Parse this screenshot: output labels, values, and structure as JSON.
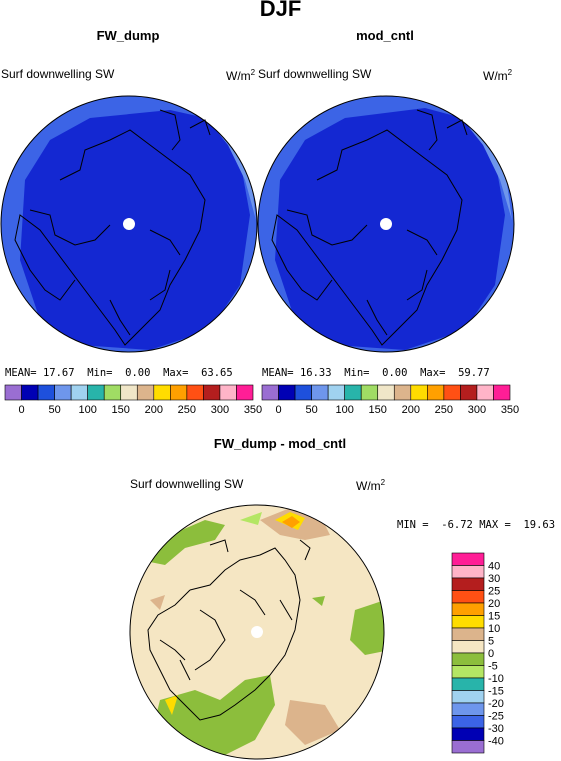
{
  "title": "DJF",
  "top_left": {
    "title": "FW_dump",
    "label_left": "Surf downwelling SW",
    "units": "W/m",
    "units_sup": "2",
    "stats": {
      "mean_label": "MEAN=",
      "mean": "17.67",
      "min_label": "Min=",
      "min": "0.00",
      "max_label": "Max=",
      "max": "63.65"
    }
  },
  "top_right": {
    "title": "mod_cntl",
    "label_left": "Surf downwelling SW",
    "units": "W/m",
    "units_sup": "2",
    "stats": {
      "mean_label": "MEAN=",
      "mean": "16.33",
      "min_label": "Min=",
      "min": "0.00",
      "max_label": "Max=",
      "max": "59.77"
    }
  },
  "bottom": {
    "title": "FW_dump - mod_cntl",
    "label_left": "Surf downwelling SW",
    "units": "W/m",
    "units_sup": "2",
    "stats": {
      "min_label": "MIN =",
      "min": "-6.72",
      "max_label": "MAX =",
      "max": "19.63"
    }
  },
  "colors": {
    "land_line": "#000000",
    "sw_deep_blue": "#1428d2",
    "sw_mid_blue": "#3c64e6",
    "sw_light_blue": "#6e96ec",
    "diff_tan": "#f5e6c3",
    "diff_brown": "#dcb48c",
    "diff_green": "#8cbe3c",
    "diff_light_green": "#b4e664",
    "diff_orange": "#ffa000",
    "diff_yellow": "#ffdc00"
  },
  "chart_data": [
    {
      "type": "heatmap",
      "projection": "polar stereographic (north pole)",
      "panel": "FW_dump",
      "variable": "Surf downwelling SW",
      "units": "W/m2",
      "colorbar": {
        "orientation": "horizontal",
        "ticks": [
          "0",
          "50",
          "100",
          "150",
          "200",
          "250",
          "300",
          "350"
        ],
        "colors": [
          "#9a6ed2",
          "#0000b4",
          "#1e50dc",
          "#6e96ec",
          "#a0d2f0",
          "#28b4aa",
          "#a0dc64",
          "#f0e6c8",
          "#dcb48c",
          "#ffdc00",
          "#ffa000",
          "#ff5014",
          "#b41e1e",
          "#ffb4c8",
          "#ff1e96"
        ]
      },
      "mean": 17.67,
      "min": 0.0,
      "max": 63.65
    },
    {
      "type": "heatmap",
      "projection": "polar stereographic (north pole)",
      "panel": "mod_cntl",
      "variable": "Surf downwelling SW",
      "units": "W/m2",
      "colorbar": {
        "orientation": "horizontal",
        "ticks": [
          "0",
          "50",
          "100",
          "150",
          "200",
          "250",
          "300",
          "350"
        ],
        "colors": [
          "#9a6ed2",
          "#0000b4",
          "#1e50dc",
          "#6e96ec",
          "#a0d2f0",
          "#28b4aa",
          "#a0dc64",
          "#f0e6c8",
          "#dcb48c",
          "#ffdc00",
          "#ffa000",
          "#ff5014",
          "#b41e1e",
          "#ffb4c8",
          "#ff1e96"
        ]
      },
      "mean": 16.33,
      "min": 0.0,
      "max": 59.77
    },
    {
      "type": "heatmap",
      "projection": "polar stereographic (north pole)",
      "panel": "FW_dump - mod_cntl",
      "variable": "Surf downwelling SW",
      "units": "W/m2",
      "colorbar": {
        "orientation": "vertical",
        "ticks": [
          "40",
          "30",
          "25",
          "20",
          "15",
          "10",
          "5",
          "0",
          "-5",
          "-10",
          "-15",
          "-20",
          "-25",
          "-30",
          "-40"
        ],
        "colors": [
          "#ff1e96",
          "#ffb4c8",
          "#b41e1e",
          "#ff5014",
          "#ffa000",
          "#ffdc00",
          "#dcb48c",
          "#f5e6c3",
          "#8cbe3c",
          "#b4e664",
          "#28b4aa",
          "#a0d2f0",
          "#6e96ec",
          "#3c64e6",
          "#0000b4",
          "#9a6ed2"
        ]
      },
      "min": -6.72,
      "max": 19.63
    }
  ]
}
